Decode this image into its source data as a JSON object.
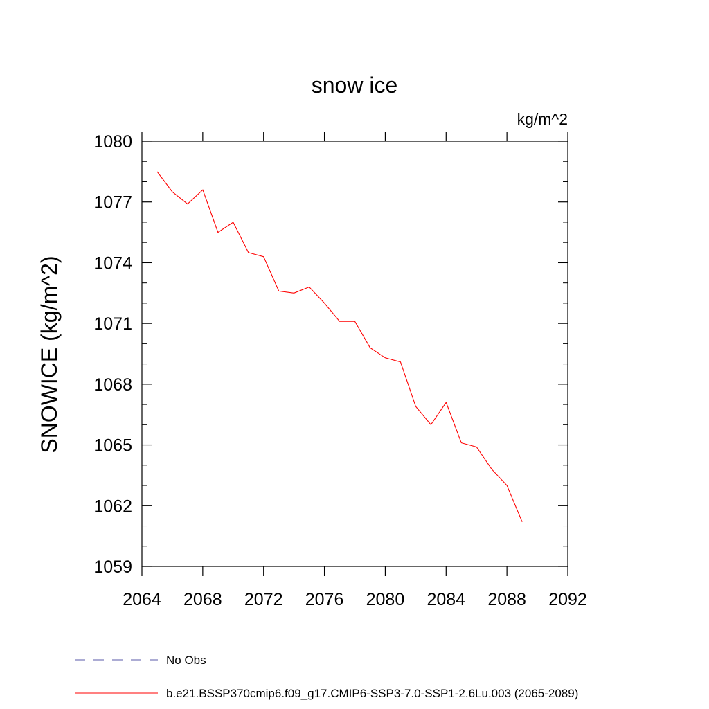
{
  "chart_data": {
    "type": "line",
    "title": "snow ice",
    "units_label": "kg/m^2",
    "ylabel": "SNOWICE  (kg/m^2)",
    "xlabel": "",
    "xlim": [
      2064,
      2092
    ],
    "ylim": [
      1059,
      1080
    ],
    "x_ticks": [
      2064,
      2068,
      2072,
      2076,
      2080,
      2084,
      2088,
      2092
    ],
    "y_ticks": [
      1059,
      1062,
      1065,
      1068,
      1071,
      1074,
      1077,
      1080
    ],
    "grid": false,
    "legend_position": "bottom",
    "legend": [
      {
        "label": "No Obs",
        "style": "dashed",
        "color": "#5a5aa8"
      },
      {
        "label": "b.e21.BSSP370cmip6.f09_g17.CMIP6-SSP3-7.0-SSP1-2.6Lu.003 (2065-2089)",
        "style": "solid",
        "color": "#ff0000"
      }
    ],
    "series": [
      {
        "name": "b.e21.BSSP370cmip6.f09_g17.CMIP6-SSP3-7.0-SSP1-2.6Lu.003 (2065-2089)",
        "color": "#ff0000",
        "x": [
          2065,
          2066,
          2067,
          2068,
          2069,
          2070,
          2071,
          2072,
          2073,
          2074,
          2075,
          2076,
          2077,
          2078,
          2079,
          2080,
          2081,
          2082,
          2083,
          2084,
          2085,
          2086,
          2087,
          2088,
          2089
        ],
        "y": [
          1078.5,
          1077.5,
          1076.9,
          1077.6,
          1075.5,
          1076.0,
          1074.5,
          1074.3,
          1072.6,
          1072.5,
          1072.8,
          1072.0,
          1071.1,
          1071.1,
          1069.8,
          1069.3,
          1069.1,
          1066.9,
          1066.0,
          1067.1,
          1065.1,
          1064.9,
          1063.8,
          1063.0,
          1061.2
        ]
      }
    ]
  }
}
